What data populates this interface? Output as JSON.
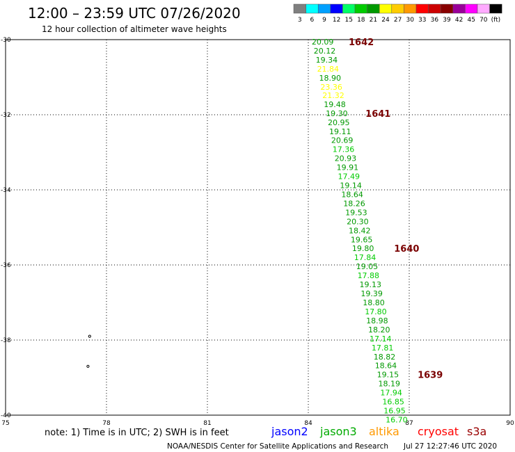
{
  "header": {
    "title": "12:00 – 23:59 UTC 07/26/2020",
    "subtitle": "12 hour collection of altimeter wave heights"
  },
  "color_scale": {
    "colors": [
      "#7f7f7f",
      "#00ffff",
      "#00a0ff",
      "#0000ff",
      "#00ff66",
      "#00cc00",
      "#009900",
      "#ffff00",
      "#ffcc00",
      "#ff9900",
      "#ff0000",
      "#cc0000",
      "#880000",
      "#990099",
      "#ff00ff",
      "#ffaaff",
      "#000000"
    ],
    "labels": [
      "3",
      "6",
      "9",
      "12",
      "15",
      "18",
      "21",
      "24",
      "27",
      "30",
      "33",
      "36",
      "39",
      "42",
      "45",
      "70",
      "(ft)"
    ]
  },
  "legend": {
    "satellites": [
      {
        "name": "jason2",
        "color": "#0000ff"
      },
      {
        "name": "jason3",
        "color": "#00aa00"
      },
      {
        "name": "altika",
        "color": "#ff9900"
      },
      {
        "name": "cryosat",
        "color": "#ff0000"
      },
      {
        "name": "s3a",
        "color": "#990000"
      }
    ]
  },
  "note": "note:  1) Time is in UTC;  2) SWH is in feet",
  "footer": {
    "credit": "NOAA/NESDIS Center for Satellite Applications and Research",
    "timestamp": "Jul 27 12:27:46 UTC 2020"
  },
  "chart_data": {
    "type": "scatter",
    "title": "12:00 – 23:59 UTC 07/26/2020",
    "subtitle": "12 hour collection of altimeter wave heights",
    "xlim": [
      75,
      90
    ],
    "ylim": [
      -40,
      -30
    ],
    "x_ticks": [
      "75",
      "78",
      "81",
      "84",
      "87",
      "90"
    ],
    "y_ticks": [
      "-30",
      "-32",
      "-34",
      "-36",
      "-38",
      "-40"
    ],
    "grid": true,
    "observations": [
      {
        "lon": 84.1,
        "lat": -30.06,
        "swh": "20.09",
        "color": "#009900"
      },
      {
        "lon": 84.16,
        "lat": -30.3,
        "swh": "20.12",
        "color": "#009900"
      },
      {
        "lon": 84.22,
        "lat": -30.54,
        "swh": "19.34",
        "color": "#009900"
      },
      {
        "lon": 84.26,
        "lat": -30.78,
        "swh": "21.84",
        "color": "#ffff00"
      },
      {
        "lon": 84.32,
        "lat": -31.02,
        "swh": "18.90",
        "color": "#009900"
      },
      {
        "lon": 84.36,
        "lat": -31.26,
        "swh": "23.36",
        "color": "#ffff00"
      },
      {
        "lon": 84.42,
        "lat": -31.48,
        "swh": "21.32",
        "color": "#ffff00"
      },
      {
        "lon": 84.46,
        "lat": -31.72,
        "swh": "19.48",
        "color": "#009900"
      },
      {
        "lon": 84.52,
        "lat": -31.96,
        "swh": "19.30",
        "color": "#009900"
      },
      {
        "lon": 84.58,
        "lat": -32.2,
        "swh": "20.95",
        "color": "#009900"
      },
      {
        "lon": 84.62,
        "lat": -32.44,
        "swh": "19.11",
        "color": "#009900"
      },
      {
        "lon": 84.68,
        "lat": -32.68,
        "swh": "20.69",
        "color": "#009900"
      },
      {
        "lon": 84.72,
        "lat": -32.92,
        "swh": "17.36",
        "color": "#00cc00"
      },
      {
        "lon": 84.78,
        "lat": -33.16,
        "swh": "20.93",
        "color": "#009900"
      },
      {
        "lon": 84.84,
        "lat": -33.4,
        "swh": "19.91",
        "color": "#009900"
      },
      {
        "lon": 84.88,
        "lat": -33.64,
        "swh": "17.49",
        "color": "#00cc00"
      },
      {
        "lon": 84.94,
        "lat": -33.88,
        "swh": "19.14",
        "color": "#009900"
      },
      {
        "lon": 84.98,
        "lat": -34.12,
        "swh": "18.64",
        "color": "#009900"
      },
      {
        "lon": 85.04,
        "lat": -34.36,
        "swh": "18.26",
        "color": "#009900"
      },
      {
        "lon": 85.1,
        "lat": -34.6,
        "swh": "19.53",
        "color": "#009900"
      },
      {
        "lon": 85.14,
        "lat": -34.84,
        "swh": "20.30",
        "color": "#009900"
      },
      {
        "lon": 85.2,
        "lat": -35.08,
        "swh": "18.42",
        "color": "#009900"
      },
      {
        "lon": 85.26,
        "lat": -35.32,
        "swh": "19.65",
        "color": "#009900"
      },
      {
        "lon": 85.3,
        "lat": -35.56,
        "swh": "19.80",
        "color": "#009900"
      },
      {
        "lon": 85.36,
        "lat": -35.8,
        "swh": "17.84",
        "color": "#00cc00"
      },
      {
        "lon": 85.42,
        "lat": -36.04,
        "swh": "19.05",
        "color": "#009900"
      },
      {
        "lon": 85.46,
        "lat": -36.28,
        "swh": "17.88",
        "color": "#00cc00"
      },
      {
        "lon": 85.52,
        "lat": -36.52,
        "swh": "19.13",
        "color": "#009900"
      },
      {
        "lon": 85.56,
        "lat": -36.76,
        "swh": "19.39",
        "color": "#009900"
      },
      {
        "lon": 85.62,
        "lat": -37.0,
        "swh": "18.80",
        "color": "#009900"
      },
      {
        "lon": 85.68,
        "lat": -37.24,
        "swh": "17.80",
        "color": "#00cc00"
      },
      {
        "lon": 85.72,
        "lat": -37.48,
        "swh": "18.98",
        "color": "#009900"
      },
      {
        "lon": 85.78,
        "lat": -37.72,
        "swh": "18.20",
        "color": "#009900"
      },
      {
        "lon": 85.82,
        "lat": -37.96,
        "swh": "17.14",
        "color": "#00cc00"
      },
      {
        "lon": 85.88,
        "lat": -38.2,
        "swh": "17.81",
        "color": "#00cc00"
      },
      {
        "lon": 85.94,
        "lat": -38.44,
        "swh": "18.82",
        "color": "#009900"
      },
      {
        "lon": 85.98,
        "lat": -38.68,
        "swh": "18.64",
        "color": "#009900"
      },
      {
        "lon": 86.04,
        "lat": -38.92,
        "swh": "19.15",
        "color": "#009900"
      },
      {
        "lon": 86.08,
        "lat": -39.16,
        "swh": "18.19",
        "color": "#009900"
      },
      {
        "lon": 86.14,
        "lat": -39.4,
        "swh": "17.94",
        "color": "#00cc00"
      },
      {
        "lon": 86.2,
        "lat": -39.64,
        "swh": "16.85",
        "color": "#00cc00"
      },
      {
        "lon": 86.24,
        "lat": -39.88,
        "swh": "16.95",
        "color": "#00cc00"
      },
      {
        "lon": 86.3,
        "lat": -40.12,
        "swh": "16.70",
        "color": "#00cc00"
      }
    ],
    "time_marks": [
      {
        "lon": 85.2,
        "lat": -30.06,
        "label": "1642"
      },
      {
        "lon": 85.7,
        "lat": -31.96,
        "label": "1641"
      },
      {
        "lon": 86.55,
        "lat": -35.56,
        "label": "1640"
      },
      {
        "lon": 87.25,
        "lat": -38.92,
        "label": "1639"
      }
    ],
    "coast_points": [
      {
        "lon": 77.5,
        "lat": -37.9
      },
      {
        "lon": 77.45,
        "lat": -38.7
      }
    ]
  }
}
